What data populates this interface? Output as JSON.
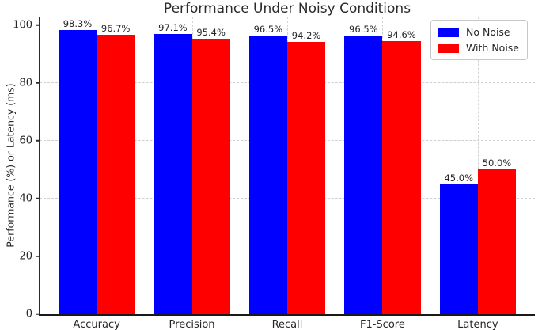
{
  "chart_data": {
    "type": "bar",
    "title": "Performance Under Noisy Conditions",
    "xlabel": "",
    "ylabel": "Performance (%) or Latency (ms)",
    "categories": [
      "Accuracy",
      "Precision",
      "Recall",
      "F1-Score",
      "Latency"
    ],
    "series": [
      {
        "name": "No Noise",
        "color": "#0000ff",
        "values": [
          98.3,
          97.1,
          96.5,
          96.5,
          45.0
        ],
        "bar_labels": [
          "98.3%",
          "97.1%",
          "96.5%",
          "96.5%",
          "45.0%"
        ]
      },
      {
        "name": "With Noise",
        "color": "#ff0000",
        "values": [
          96.7,
          95.4,
          94.2,
          94.6,
          50.0
        ],
        "bar_labels": [
          "96.7%",
          "95.4%",
          "94.2%",
          "94.6%",
          "50.0%"
        ]
      }
    ],
    "yticks": [
      0,
      20,
      40,
      60,
      80,
      100
    ],
    "ylim": [
      0,
      103
    ],
    "grid": true,
    "grid_style": "dashed",
    "legend_position": "upper right"
  }
}
